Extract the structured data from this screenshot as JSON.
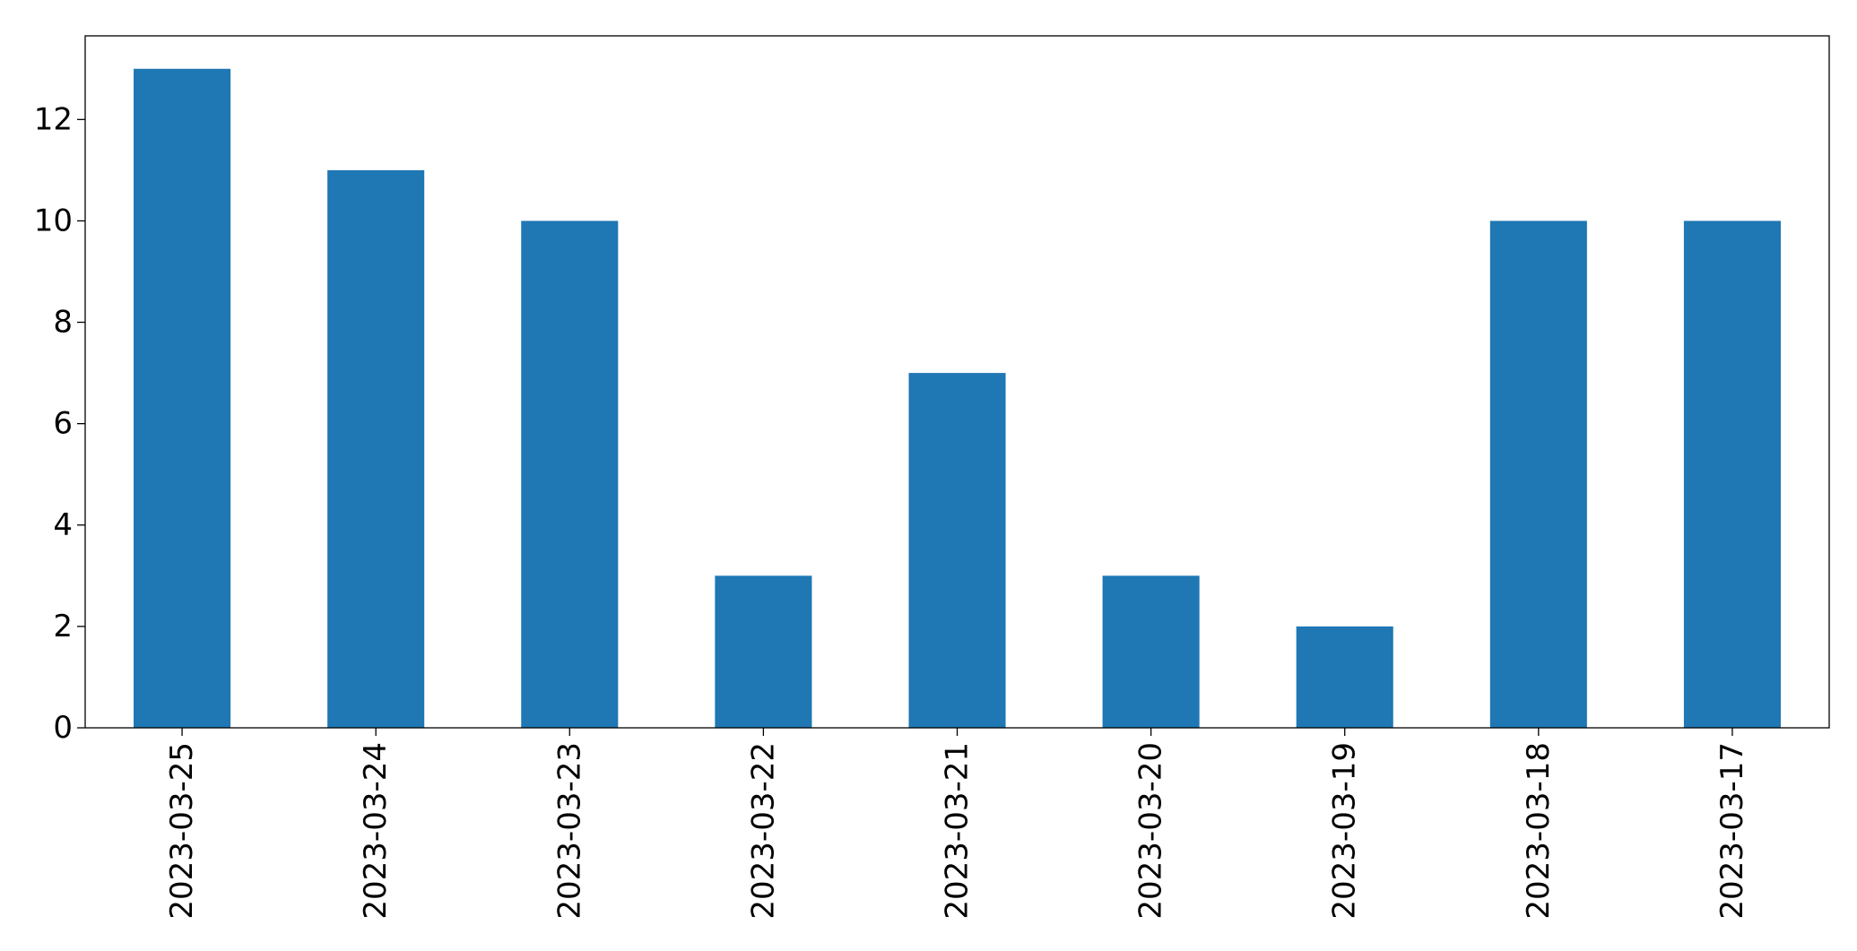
{
  "chart_data": {
    "type": "bar",
    "categories": [
      "2023-03-25",
      "2023-03-24",
      "2023-03-23",
      "2023-03-22",
      "2023-03-21",
      "2023-03-20",
      "2023-03-19",
      "2023-03-18",
      "2023-03-17"
    ],
    "values": [
      13,
      11,
      10,
      3,
      7,
      3,
      2,
      10,
      10
    ],
    "title": "",
    "xlabel": "",
    "ylabel": "",
    "ylim": [
      0,
      13.65
    ],
    "yticks": [
      0,
      2,
      4,
      6,
      8,
      10,
      12
    ],
    "grid": false,
    "bar_color": "#1f77b4",
    "x_tick_rotation": "vertical"
  }
}
